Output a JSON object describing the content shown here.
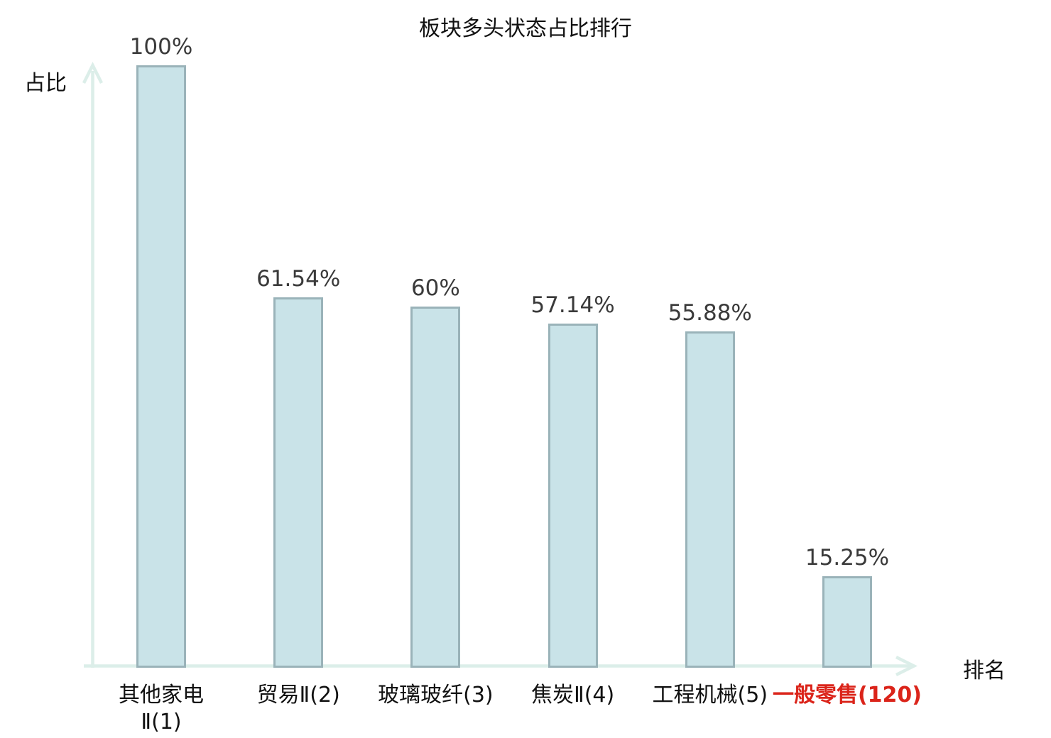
{
  "chart_data": {
    "type": "bar",
    "title": "板块多头状态占比排行",
    "ylabel": "占比",
    "xlabel": "排名",
    "categories": [
      "其他家电\nⅡ(1)",
      "贸易Ⅱ(2)",
      "玻璃玻纤(3)",
      "焦炭Ⅱ(4)",
      "工程机械(5)",
      "一般零售(120)"
    ],
    "values": [
      100,
      61.54,
      60,
      57.14,
      55.88,
      15.25
    ],
    "value_labels": [
      "100%",
      "61.54%",
      "60%",
      "57.14%",
      "55.88%",
      "15.25%"
    ],
    "highlight_index": 5,
    "ylim": [
      0,
      100
    ],
    "grid": false,
    "legend": false,
    "colors": {
      "bar_fill": "#c9e3e8",
      "bar_border": "#9ab3b9",
      "axis": "#dceee9",
      "value_text": "#3a3a3a",
      "label_text": "#111111",
      "highlight_text": "#db241a"
    }
  }
}
